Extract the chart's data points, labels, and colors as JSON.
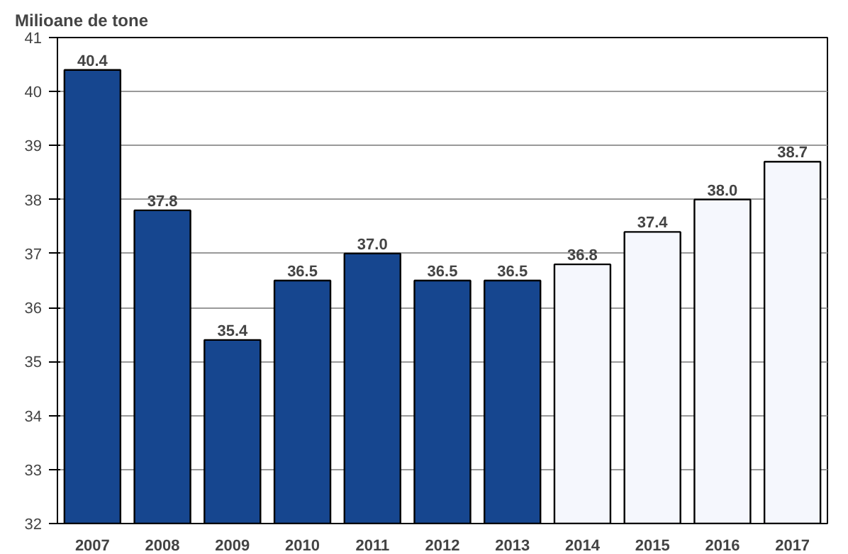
{
  "chart_data": {
    "type": "bar",
    "title": "Milioane de tone",
    "categories": [
      "2007",
      "2008",
      "2009",
      "2010",
      "2011",
      "2012",
      "2013",
      "2014",
      "2015",
      "2016",
      "2017"
    ],
    "values": [
      40.4,
      37.8,
      35.4,
      36.5,
      37.0,
      36.5,
      36.5,
      36.8,
      37.4,
      38.0,
      38.7
    ],
    "value_labels": [
      "40.4",
      "37.8",
      "35.4",
      "36.5",
      "37.0",
      "36.5",
      "36.5",
      "36.8",
      "37.4",
      "38.0",
      "38.7"
    ],
    "colors": [
      "#16468f",
      "#16468f",
      "#16468f",
      "#16468f",
      "#16468f",
      "#16468f",
      "#16468f",
      "#f5f7fd",
      "#f5f7fd",
      "#f5f7fd",
      "#f5f7fd"
    ],
    "ylim": [
      32,
      41
    ],
    "yticks": [
      32,
      33,
      34,
      35,
      36,
      37,
      38,
      39,
      40,
      41
    ],
    "grid": "y"
  }
}
